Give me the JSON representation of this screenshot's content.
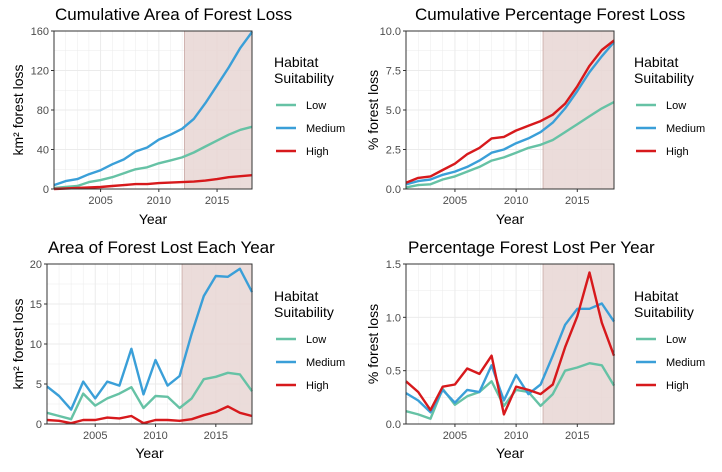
{
  "legend_common": {
    "title_lines": [
      "Habitat",
      "Suitability"
    ],
    "items": [
      "Low",
      "Medium",
      "High"
    ]
  },
  "colors": {
    "Low": "#66c2a5",
    "Medium": "#3a9fd8",
    "High": "#d7191c",
    "shade": "#e8d6d4",
    "grid": "#ebebeb",
    "axis": "#4d4d4d"
  },
  "chart_data": [
    {
      "type": "line",
      "title": "Cumulative Area of Forest Loss",
      "xlabel": "Year",
      "ylabel": "km² forest loss",
      "xlim": [
        2001,
        2018
      ],
      "ylim": [
        0,
        160
      ],
      "xticks": [
        "2005",
        "2010",
        "2015"
      ],
      "yticks": [
        "0",
        "40",
        "80",
        "120",
        "160"
      ],
      "shaded_span": [
        2012.2,
        2018
      ],
      "x": [
        2001,
        2002,
        2003,
        2004,
        2005,
        2006,
        2007,
        2008,
        2009,
        2010,
        2011,
        2012,
        2013,
        2014,
        2015,
        2016,
        2017,
        2018
      ],
      "series": [
        {
          "name": "Low",
          "values": [
            1,
            2,
            3,
            7,
            9,
            12,
            16,
            20,
            22,
            26,
            29,
            32,
            37,
            43,
            49,
            55,
            60,
            63
          ]
        },
        {
          "name": "Medium",
          "values": [
            4,
            8,
            10,
            15,
            19,
            25,
            30,
            38,
            42,
            50,
            55,
            61,
            71,
            87,
            105,
            123,
            143,
            159
          ]
        },
        {
          "name": "High",
          "values": [
            0,
            0.5,
            1,
            1.5,
            2,
            3,
            4,
            5,
            5,
            6,
            6.5,
            7,
            7.5,
            8.5,
            10,
            12,
            13,
            14
          ]
        }
      ]
    },
    {
      "type": "line",
      "title": "Cumulative Percentage Forest Loss",
      "xlabel": "Year",
      "ylabel": "% forest loss",
      "xlim": [
        2001,
        2018
      ],
      "ylim": [
        0,
        10
      ],
      "xticks": [
        "2005",
        "2010",
        "2015"
      ],
      "yticks": [
        "0.0",
        "2.5",
        "5.0",
        "7.5",
        "10.0"
      ],
      "shaded_span": [
        2012.2,
        2018
      ],
      "x": [
        2001,
        2002,
        2003,
        2004,
        2005,
        2006,
        2007,
        2008,
        2009,
        2010,
        2011,
        2012,
        2013,
        2014,
        2015,
        2016,
        2017,
        2018
      ],
      "series": [
        {
          "name": "Low",
          "values": [
            0.1,
            0.25,
            0.3,
            0.6,
            0.8,
            1.1,
            1.4,
            1.8,
            2.0,
            2.3,
            2.6,
            2.8,
            3.1,
            3.6,
            4.1,
            4.6,
            5.1,
            5.5
          ]
        },
        {
          "name": "Medium",
          "values": [
            0.3,
            0.5,
            0.6,
            0.9,
            1.1,
            1.4,
            1.8,
            2.3,
            2.5,
            2.9,
            3.2,
            3.6,
            4.2,
            5.1,
            6.2,
            7.4,
            8.4,
            9.3
          ]
        },
        {
          "name": "High",
          "values": [
            0.4,
            0.7,
            0.8,
            1.2,
            1.6,
            2.2,
            2.6,
            3.2,
            3.3,
            3.7,
            4.0,
            4.3,
            4.7,
            5.4,
            6.5,
            7.8,
            8.8,
            9.4
          ]
        }
      ]
    },
    {
      "type": "line",
      "title": "Area of Forest Lost Each Year",
      "xlabel": "Year",
      "ylabel": "km² forest loss",
      "xlim": [
        2001,
        2018
      ],
      "ylim": [
        0,
        20
      ],
      "xticks": [
        "2005",
        "2010",
        "2015"
      ],
      "yticks": [
        "0",
        "5",
        "10",
        "15",
        "20"
      ],
      "shaded_span": [
        2012.2,
        2018
      ],
      "x": [
        2001,
        2002,
        2003,
        2004,
        2005,
        2006,
        2007,
        2008,
        2009,
        2010,
        2011,
        2012,
        2013,
        2014,
        2015,
        2016,
        2017,
        2018
      ],
      "series": [
        {
          "name": "Low",
          "values": [
            1.4,
            1.0,
            0.6,
            3.8,
            2.3,
            3.2,
            3.8,
            4.6,
            2.0,
            3.5,
            3.4,
            2.0,
            3.2,
            5.6,
            5.9,
            6.4,
            6.2,
            4.1
          ]
        },
        {
          "name": "Medium",
          "values": [
            4.7,
            3.5,
            1.8,
            5.3,
            3.2,
            5.3,
            4.8,
            9.4,
            3.7,
            8.0,
            4.8,
            6.0,
            11.3,
            16.0,
            18.5,
            18.4,
            19.4,
            16.5
          ]
        },
        {
          "name": "High",
          "values": [
            0.5,
            0.4,
            0.1,
            0.5,
            0.5,
            0.8,
            0.7,
            1.0,
            0.1,
            0.5,
            0.5,
            0.4,
            0.6,
            1.1,
            1.5,
            2.2,
            1.4,
            1.0
          ]
        }
      ]
    },
    {
      "type": "line",
      "title": "Percentage Forest Lost Per Year",
      "xlabel": "Year",
      "ylabel": "% forest loss",
      "xlim": [
        2001,
        2018
      ],
      "ylim": [
        0,
        1.5
      ],
      "xticks": [
        "2005",
        "2010",
        "2015"
      ],
      "yticks": [
        "0.0",
        "0.5",
        "1.0",
        "1.5"
      ],
      "shaded_span": [
        2012.2,
        2018
      ],
      "x": [
        2001,
        2002,
        2003,
        2004,
        2005,
        2006,
        2007,
        2008,
        2009,
        2010,
        2011,
        2012,
        2013,
        2014,
        2015,
        2016,
        2017,
        2018
      ],
      "series": [
        {
          "name": "Low",
          "values": [
            0.12,
            0.09,
            0.05,
            0.33,
            0.18,
            0.26,
            0.3,
            0.4,
            0.17,
            0.32,
            0.3,
            0.17,
            0.28,
            0.5,
            0.53,
            0.57,
            0.55,
            0.36
          ]
        },
        {
          "name": "Medium",
          "values": [
            0.29,
            0.22,
            0.11,
            0.32,
            0.2,
            0.32,
            0.3,
            0.55,
            0.22,
            0.46,
            0.28,
            0.37,
            0.64,
            0.93,
            1.08,
            1.08,
            1.13,
            0.96
          ]
        },
        {
          "name": "High",
          "values": [
            0.4,
            0.3,
            0.13,
            0.35,
            0.37,
            0.52,
            0.47,
            0.64,
            0.09,
            0.35,
            0.32,
            0.28,
            0.37,
            0.72,
            1.01,
            1.42,
            0.95,
            0.64
          ]
        }
      ]
    }
  ]
}
